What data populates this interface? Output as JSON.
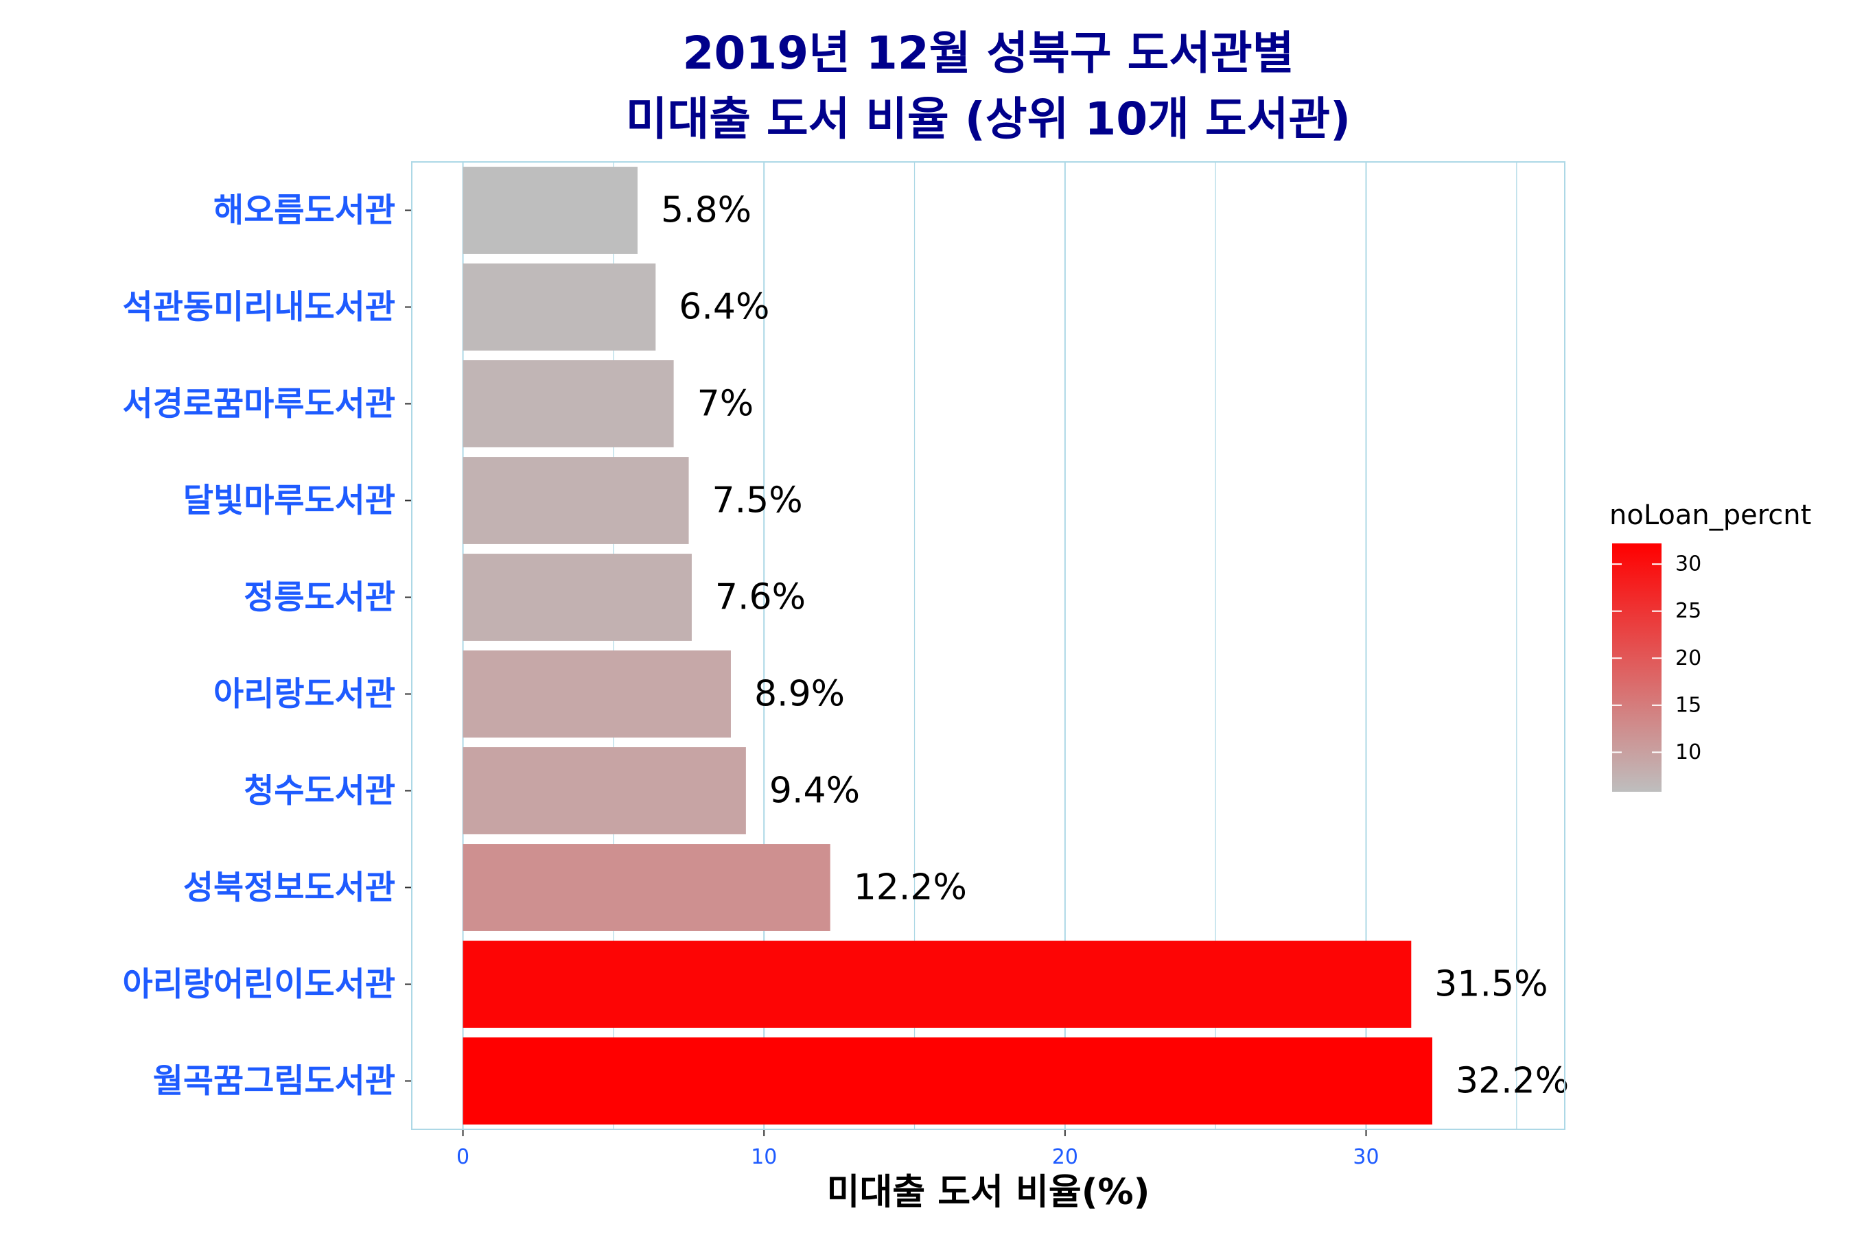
{
  "chart_data": {
    "type": "bar",
    "orientation": "horizontal",
    "title": "2019년 12월 성북구 도서관별",
    "subtitle": "미대출 도서 비율 (상위 10개 도서관)",
    "xlabel": "미대출 도서 비율(%)",
    "ylabel": "",
    "categories": [
      "해오름도서관",
      "석관동미리내도서관",
      "서경로꿈마루도서관",
      "달빛마루도서관",
      "정릉도서관",
      "아리랑도서관",
      "청수도서관",
      "성북정보도서관",
      "아리랑어린이도서관",
      "월곡꿈그림도서관"
    ],
    "values": [
      5.8,
      6.4,
      7.0,
      7.5,
      7.6,
      8.9,
      9.4,
      12.2,
      31.5,
      32.2
    ],
    "value_labels": [
      "5.8%",
      "6.4%",
      "7%",
      "7.5%",
      "7.6%",
      "8.9%",
      "9.4%",
      "12.2%",
      "31.5%",
      "32.2%"
    ],
    "xlim": [
      -1.7,
      36.6
    ],
    "xticks": [
      0,
      10,
      20,
      30
    ],
    "grid": true,
    "legend": {
      "title": "noLoan_percnt",
      "placement": "right",
      "ticks": [
        10,
        15,
        20,
        25,
        30
      ],
      "range": [
        5.8,
        32.2
      ],
      "low_color": "#BEBEBE",
      "high_color": "#FF0000"
    },
    "colors": {
      "title": "#00008B",
      "category_labels": "#1E5BFF",
      "tick_labels": "#1E5BFF",
      "panel_border": "#ADD8E6",
      "grid": "#ADD8E6"
    }
  }
}
